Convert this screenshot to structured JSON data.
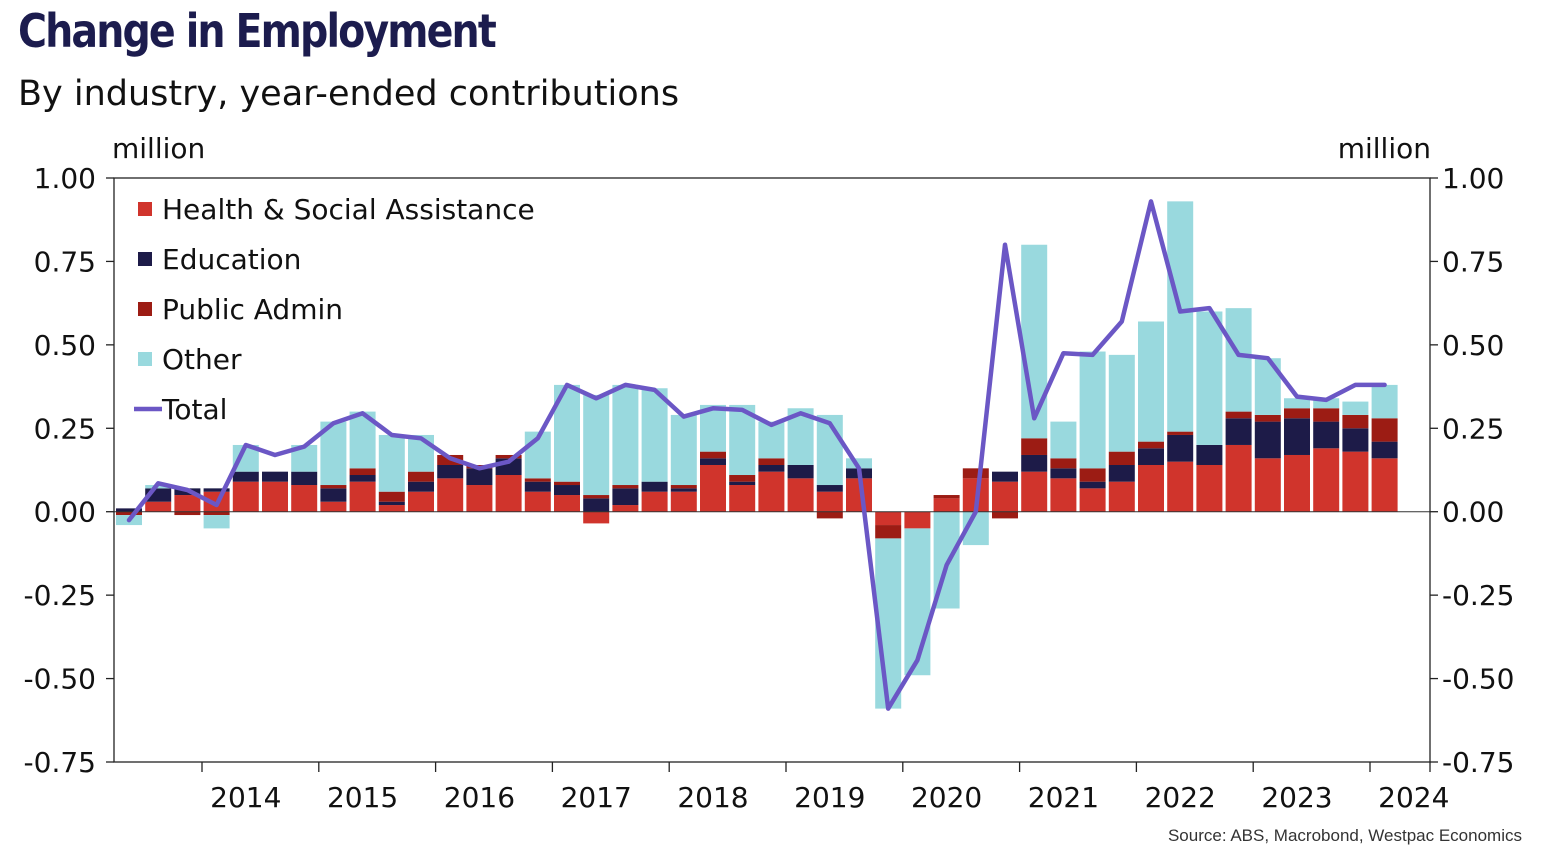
{
  "title": "Change in Employment",
  "subtitle": "By industry, year-ended contributions",
  "source": "Source: ABS, Macrobond, Westpac Economics",
  "colors": {
    "health": "#d0342c",
    "education": "#1d1b48",
    "public_admin": "#9c1c14",
    "other": "#99d9de",
    "total": "#6b57c5",
    "title": "#1c1c4e"
  },
  "chart_data": {
    "type": "bar",
    "stacked": true,
    "title": "Change in Employment",
    "subtitle": "By industry, year-ended contributions",
    "y_unit_left": "million",
    "y_unit_right": "million",
    "ylim": [
      -0.75,
      1.0
    ],
    "y_ticks": [
      1.0,
      0.75,
      0.5,
      0.25,
      0.0,
      -0.25,
      -0.5,
      -0.75
    ],
    "y_tick_labels": [
      "1.00",
      "0.75",
      "0.50",
      "0.25",
      "0.00",
      "-0.25",
      "-0.50",
      "-0.75"
    ],
    "x_tick_labels": [
      "2014",
      "2015",
      "2016",
      "2017",
      "2018",
      "2019",
      "2020",
      "2021",
      "2022",
      "2023",
      "2024"
    ],
    "legend_position": "top-left",
    "legend": [
      "Health & Social Assistance",
      "Education",
      "Public Admin",
      "Other",
      "Total"
    ],
    "periods": [
      "Jun-13",
      "Sep-13",
      "Dec-13",
      "Mar-14",
      "Jun-14",
      "Sep-14",
      "Dec-14",
      "Mar-15",
      "Jun-15",
      "Sep-15",
      "Dec-15",
      "Mar-16",
      "Jun-16",
      "Sep-16",
      "Dec-16",
      "Mar-17",
      "Jun-17",
      "Sep-17",
      "Dec-17",
      "Mar-18",
      "Jun-18",
      "Sep-18",
      "Dec-18",
      "Mar-19",
      "Jun-19",
      "Sep-19",
      "Dec-19",
      "Mar-20",
      "Jun-20",
      "Sep-20",
      "Dec-20",
      "Mar-21",
      "Jun-21",
      "Sep-21",
      "Dec-21",
      "Mar-22",
      "Jun-22",
      "Sep-22",
      "Dec-22",
      "Mar-23",
      "Jun-23",
      "Sep-23",
      "Dec-23",
      "Mar-24"
    ],
    "series": [
      {
        "name": "Health & Social Assistance",
        "key": "health",
        "values": [
          0.0,
          0.03,
          0.05,
          0.06,
          0.09,
          0.09,
          0.08,
          0.03,
          0.09,
          0.02,
          0.06,
          0.1,
          0.08,
          0.11,
          0.06,
          0.05,
          -0.035,
          0.02,
          0.06,
          0.06,
          0.14,
          0.08,
          0.12,
          0.1,
          0.06,
          0.1,
          -0.04,
          -0.05,
          0.04,
          0.1,
          0.09,
          0.12,
          0.1,
          0.07,
          0.09,
          0.14,
          0.15,
          0.14,
          0.2,
          0.16,
          0.17,
          0.19,
          0.18,
          0.16
        ]
      },
      {
        "name": "Education",
        "key": "education",
        "values": [
          0.01,
          0.04,
          0.02,
          0.01,
          0.03,
          0.03,
          0.04,
          0.04,
          0.02,
          0.01,
          0.03,
          0.04,
          0.05,
          0.05,
          0.03,
          0.03,
          0.04,
          0.05,
          0.03,
          0.01,
          0.02,
          0.01,
          0.02,
          0.04,
          0.02,
          0.03,
          0.0,
          0.0,
          0.0,
          0.0,
          0.03,
          0.05,
          0.03,
          0.02,
          0.05,
          0.05,
          0.08,
          0.06,
          0.08,
          0.11,
          0.11,
          0.08,
          0.07,
          0.05
        ]
      },
      {
        "name": "Public Admin",
        "key": "public_admin",
        "values": [
          -0.01,
          0.0,
          -0.01,
          -0.01,
          0.0,
          0.0,
          0.0,
          0.01,
          0.02,
          0.03,
          0.03,
          0.03,
          0.01,
          0.01,
          0.01,
          0.01,
          0.01,
          0.01,
          0.0,
          0.01,
          0.02,
          0.02,
          0.02,
          0.0,
          -0.02,
          0.0,
          -0.04,
          0.0,
          0.01,
          0.03,
          -0.02,
          0.05,
          0.03,
          0.04,
          0.04,
          0.02,
          0.01,
          0.0,
          0.02,
          0.02,
          0.03,
          0.04,
          0.04,
          0.07
        ]
      },
      {
        "name": "Other",
        "key": "other",
        "values": [
          -0.03,
          0.01,
          0.0,
          -0.04,
          0.08,
          0.0,
          0.08,
          0.19,
          0.17,
          0.17,
          0.11,
          0.0,
          0.0,
          0.0,
          0.14,
          0.29,
          0.3,
          0.3,
          0.28,
          0.21,
          0.14,
          0.21,
          0.11,
          0.17,
          0.21,
          0.03,
          -0.51,
          -0.44,
          -0.29,
          -0.1,
          0.0,
          0.58,
          0.11,
          0.35,
          0.29,
          0.36,
          0.69,
          0.4,
          0.31,
          0.17,
          0.03,
          0.03,
          0.04,
          0.1
        ]
      },
      {
        "name": "Total",
        "key": "total",
        "type": "line",
        "values": [
          -0.025,
          0.085,
          0.065,
          0.02,
          0.2,
          0.17,
          0.195,
          0.265,
          0.295,
          0.23,
          0.22,
          0.16,
          0.13,
          0.15,
          0.22,
          0.38,
          0.34,
          0.38,
          0.365,
          0.285,
          0.31,
          0.305,
          0.26,
          0.295,
          0.265,
          0.13,
          -0.59,
          -0.445,
          -0.16,
          0.0,
          0.8,
          0.28,
          0.475,
          0.47,
          0.57,
          0.93,
          0.6,
          0.61,
          0.47,
          0.46,
          0.345,
          0.335,
          0.38,
          0.38
        ]
      }
    ]
  }
}
